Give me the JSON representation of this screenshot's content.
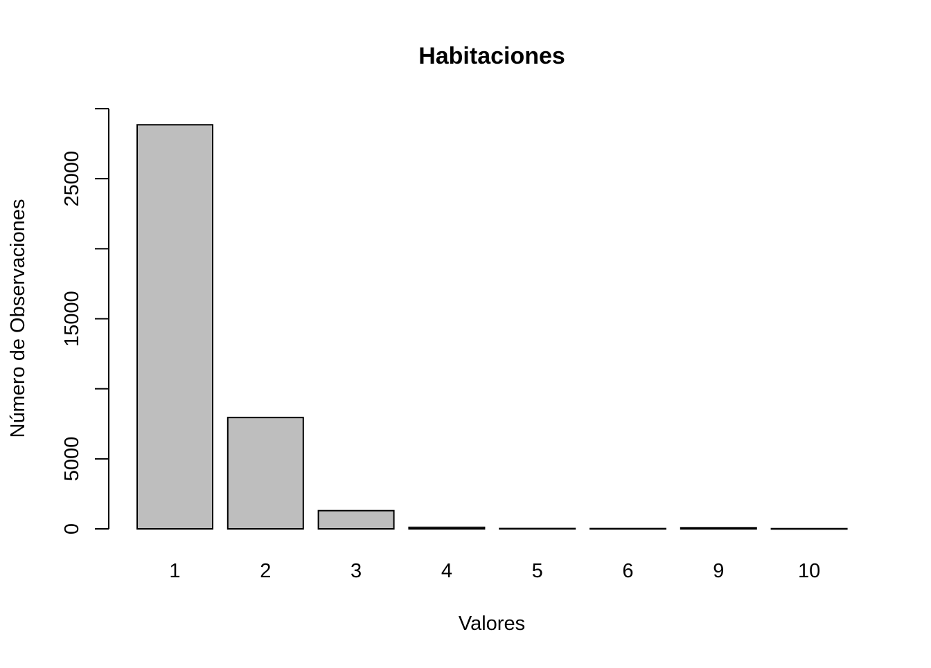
{
  "chart_data": {
    "type": "bar",
    "title": "Habitaciones",
    "xlabel": "Valores",
    "ylabel": "Número de Observaciones",
    "categories": [
      "1",
      "2",
      "3",
      "4",
      "5",
      "6",
      "9",
      "10"
    ],
    "values": [
      28850,
      7950,
      1300,
      110,
      25,
      20,
      80,
      15
    ],
    "ylim": [
      0,
      30000
    ],
    "yticks": [
      0,
      5000,
      10000,
      15000,
      20000,
      25000,
      30000
    ],
    "ytick_labels": [
      "0",
      "5000",
      "",
      "15000",
      "",
      "25000",
      ""
    ],
    "grid": false,
    "legend": "none",
    "colors": {
      "bar_fill": "#bebebe",
      "bar_stroke": "#000000",
      "axis": "#000000",
      "background": "#ffffff"
    }
  }
}
